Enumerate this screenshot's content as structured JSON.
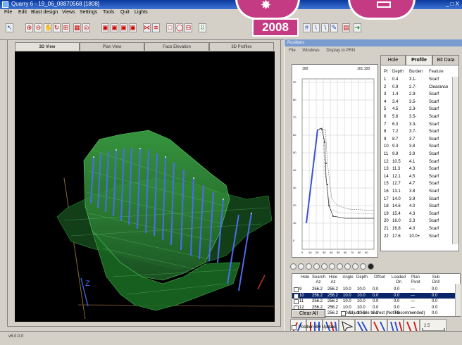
{
  "window": {
    "title": "Quarry 6 - 19_06_08870568 [1808]",
    "controls": "_ □ X"
  },
  "menu": [
    "File",
    "Edit",
    "Blast design",
    "Views",
    "Settings",
    "Tools",
    "Quit",
    "Lights"
  ],
  "badge_year": "2008",
  "view_tabs": [
    "3D View",
    "Plan View",
    "Face Elevation",
    "3D Profiles"
  ],
  "axis_label": "Z",
  "panel": {
    "title": "Positions",
    "menu": [
      "File",
      "Windows",
      "Display to PRN"
    ]
  },
  "hole_tabs": [
    "Hole",
    "Profile",
    "Bit Data"
  ],
  "hole_table": {
    "columns": [
      "Pt",
      "Depth",
      "Burden",
      "Feature"
    ],
    "rows": [
      [
        "1",
        "0.4",
        "3.1-",
        "Scarf"
      ],
      [
        "2",
        "0.9",
        "2.7-",
        "Clearance"
      ],
      [
        "3",
        "1.4",
        "2.9-",
        "Scarf"
      ],
      [
        "4",
        "3.4",
        "3.5-",
        "Scarf"
      ],
      [
        "5",
        "4.5",
        "2.3-",
        "Scarf"
      ],
      [
        "6",
        "5.6",
        "3.5-",
        "Scarf"
      ],
      [
        "7",
        "6.3",
        "3.3-",
        "Scarf"
      ],
      [
        "8",
        "7.2",
        "3.7-",
        "Scarf"
      ],
      [
        "9",
        "8.7",
        "3.7",
        "Scarf"
      ],
      [
        "10",
        "9.3",
        "3.8",
        "Scarf"
      ],
      [
        "11",
        "9.9",
        "3.9",
        "Scarf"
      ],
      [
        "12",
        "10.5",
        "4.1",
        "Scarf"
      ],
      [
        "13",
        "11.3",
        "4.3",
        "Scarf"
      ],
      [
        "14",
        "12.1",
        "4.5",
        "Scarf"
      ],
      [
        "15",
        "12.7",
        "4.7",
        "Scarf"
      ],
      [
        "16",
        "13.1",
        "3.8",
        "Scarf"
      ],
      [
        "17",
        "14.0",
        "3.9",
        "Scarf"
      ],
      [
        "18",
        "14.6",
        "4.0",
        "Scarf"
      ],
      [
        "19",
        "15.4",
        "4.3",
        "Scarf"
      ],
      [
        "20",
        "16.0",
        "3.3",
        "Scarf"
      ],
      [
        "21",
        "16.8",
        "4.0",
        "Scarf"
      ],
      [
        "22",
        "17.6",
        "10.0+",
        "Scarf"
      ]
    ]
  },
  "plot": {
    "top_left": "100",
    "top_right": "101.103",
    "y_ticks": [
      "90",
      "80",
      "70",
      "60",
      "50",
      "40",
      "30",
      "20",
      "10",
      "0"
    ],
    "x_ticks": [
      "0",
      "10",
      "20",
      "30",
      "40",
      "50",
      "60",
      "70",
      "80",
      "90"
    ]
  },
  "hole_grid": {
    "columns": [
      "Hole",
      "Search Az",
      "Hole Az",
      "Angle",
      "Depth",
      "Offset",
      "Loaded On",
      "Plan Pivot",
      "Sub Drill"
    ],
    "rows": [
      [
        "9",
        "256.2",
        "256.2",
        "10.0",
        "10.0",
        "0.0",
        "0.0",
        "—",
        "0.0"
      ],
      [
        "10",
        "256.2",
        "256.2",
        "10.0",
        "10.0",
        "0.0",
        "0.0",
        "—",
        "0.0"
      ],
      [
        "11",
        "256.2",
        "256.2",
        "10.0",
        "10.0",
        "0.0",
        "0.0",
        "—",
        "0.0"
      ],
      [
        "12",
        "256.2",
        "256.2",
        "10.0",
        "10.0",
        "0.0",
        "0.0",
        "—",
        "0.0"
      ],
      [
        "13",
        "256.2",
        "256.2",
        "10.0",
        "10.0",
        "0.0",
        "0.0",
        "—",
        "0.0"
      ]
    ],
    "selected_row": 1
  },
  "buttons": {
    "clear_all": "Clear All",
    "adjust_hole": "Adjust Hole to crest (Not Recommended)",
    "position_bh": "Position BH Update"
  },
  "status": "v6.0.0.0",
  "colors": {
    "accent": "#c43a83",
    "selection": "#0a246a",
    "terrain": "#2fbf3a",
    "holes": "#3a5fe0"
  }
}
